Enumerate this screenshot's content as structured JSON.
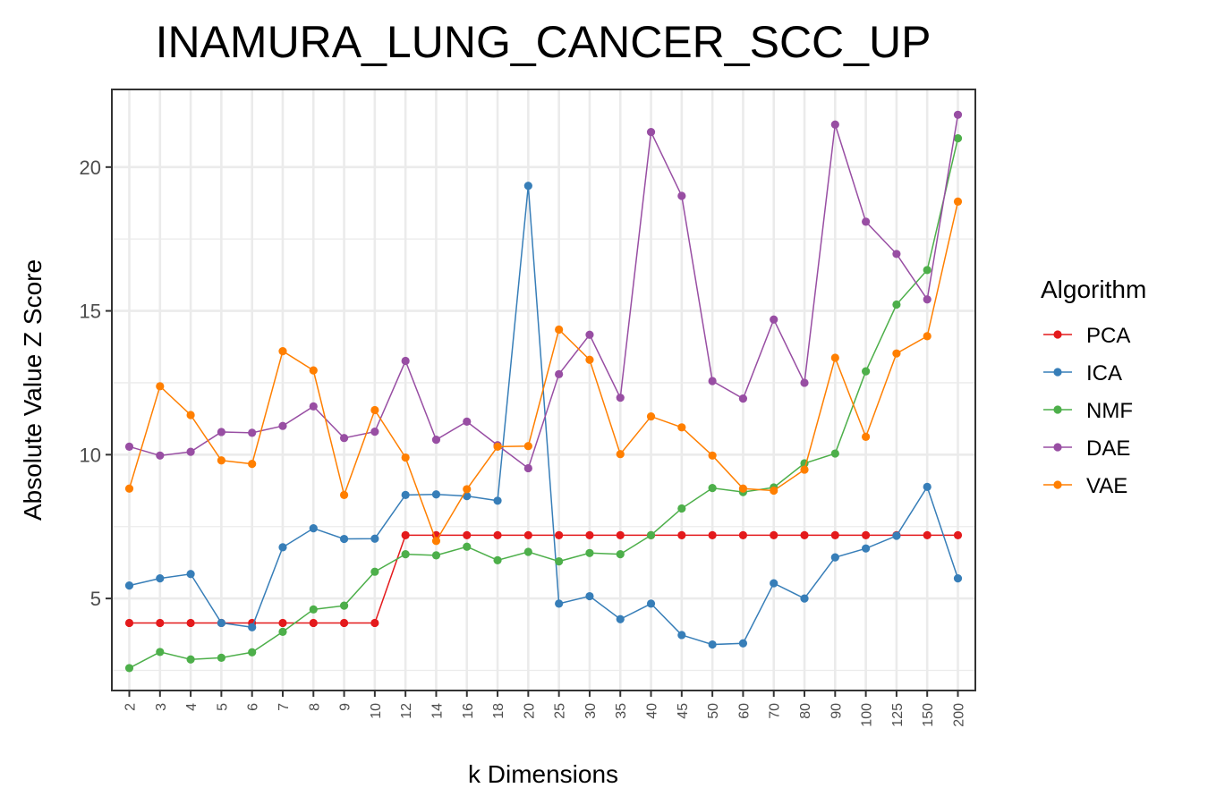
{
  "chart_data": {
    "type": "line",
    "title": "INAMURA_LUNG_CANCER_SCC_UP",
    "xlabel": "k Dimensions",
    "ylabel": "Absolute Value Z Score",
    "categories": [
      "2",
      "3",
      "4",
      "5",
      "6",
      "7",
      "8",
      "9",
      "10",
      "12",
      "14",
      "16",
      "18",
      "20",
      "25",
      "30",
      "35",
      "40",
      "45",
      "50",
      "60",
      "70",
      "80",
      "90",
      "100",
      "125",
      "150",
      "200"
    ],
    "yticks": [
      5,
      10,
      15,
      20
    ],
    "ylim": [
      1.8,
      22.7
    ],
    "grid": true,
    "legend": {
      "title": "Algorithm",
      "position": "right"
    },
    "series": [
      {
        "name": "PCA",
        "color": "#E41A1C",
        "values": [
          4.15,
          4.15,
          4.15,
          4.15,
          4.15,
          4.15,
          4.15,
          4.15,
          4.15,
          7.2,
          7.2,
          7.2,
          7.2,
          7.2,
          7.2,
          7.2,
          7.2,
          7.2,
          7.2,
          7.2,
          7.2,
          7.2,
          7.2,
          7.2,
          7.2,
          7.2,
          7.2,
          7.2
        ]
      },
      {
        "name": "ICA",
        "color": "#377EB8",
        "values": [
          5.45,
          5.7,
          5.85,
          4.15,
          4.0,
          6.78,
          7.44,
          7.07,
          7.08,
          8.6,
          8.62,
          8.56,
          8.4,
          19.35,
          4.82,
          5.08,
          4.28,
          4.82,
          3.73,
          3.4,
          3.44,
          5.53,
          5.0,
          6.43,
          6.74,
          7.18,
          8.88,
          5.7
        ]
      },
      {
        "name": "NMF",
        "color": "#4DAF4A",
        "values": [
          2.58,
          3.14,
          2.88,
          2.94,
          3.13,
          3.84,
          4.62,
          4.75,
          5.93,
          6.54,
          6.5,
          6.8,
          6.33,
          6.62,
          6.29,
          6.58,
          6.54,
          7.2,
          8.13,
          8.84,
          8.7,
          8.86,
          9.7,
          10.04,
          12.9,
          15.22,
          16.42,
          21.0
        ]
      },
      {
        "name": "DAE",
        "color": "#984EA3",
        "values": [
          10.28,
          9.97,
          10.1,
          10.79,
          10.76,
          11.0,
          11.68,
          10.58,
          10.8,
          13.26,
          10.52,
          11.15,
          10.33,
          9.53,
          12.8,
          14.17,
          11.98,
          21.22,
          19.0,
          12.56,
          11.95,
          14.7,
          12.5,
          21.48,
          18.1,
          16.98,
          15.4,
          21.82
        ]
      },
      {
        "name": "VAE",
        "color": "#FF7F00",
        "values": [
          8.82,
          12.38,
          11.38,
          9.8,
          9.68,
          13.6,
          12.93,
          8.6,
          11.55,
          9.9,
          7.0,
          8.8,
          10.28,
          10.3,
          14.35,
          13.3,
          10.02,
          11.33,
          10.95,
          9.97,
          8.82,
          8.75,
          9.48,
          13.37,
          10.62,
          13.52,
          14.12,
          18.8
        ]
      }
    ]
  }
}
